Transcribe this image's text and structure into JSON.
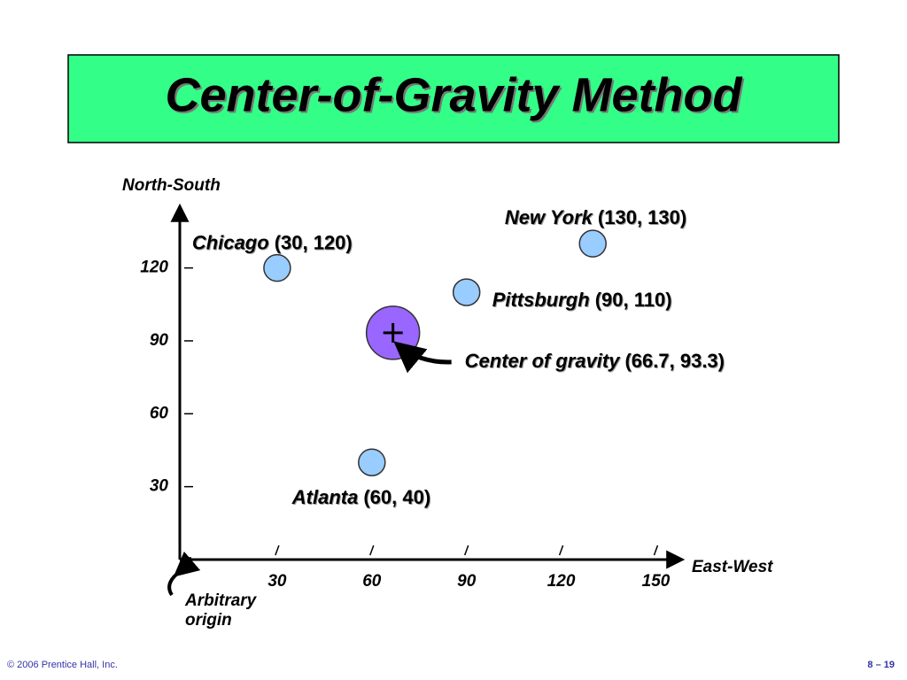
{
  "chart_data": {
    "type": "scatter",
    "title": "Center-of-Gravity Method",
    "y_label": "North-South",
    "x_label": "East-West",
    "annotation": "Arbitrary origin",
    "categories": [
      "Chicago",
      "New York",
      "Pittsburgh",
      "Atlanta",
      "Center of gravity"
    ],
    "x": [
      30,
      130,
      90,
      60,
      66.7
    ],
    "values": [
      120,
      130,
      110,
      40,
      93.3
    ],
    "value_labels": [
      "(30, 120)",
      "(130, 130)",
      "(90, 110)",
      "(60, 40)",
      "(66.7, 93.3)"
    ],
    "colors": [
      "#99ccff",
      "#99ccff",
      "#99ccff",
      "#99ccff",
      "#9966ff"
    ],
    "markers": [
      "circle",
      "circle",
      "circle",
      "circle",
      "centroid"
    ],
    "xlim": [
      0,
      158
    ],
    "ylim": [
      0,
      145
    ],
    "xticks": [
      30,
      60,
      90,
      120,
      150
    ],
    "yticks": [
      30,
      60,
      90,
      120
    ],
    "footer_left": "© 2006 Prentice Hall, Inc.",
    "footer_right": "8 – 19"
  }
}
